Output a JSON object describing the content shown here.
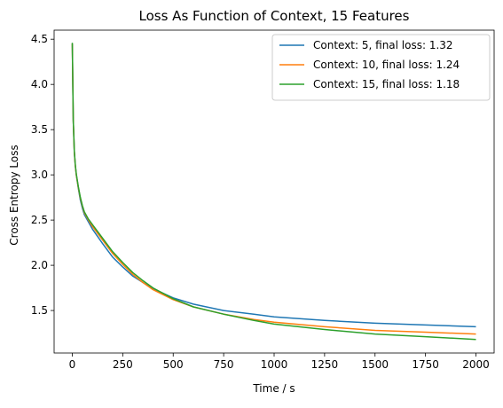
{
  "chart_data": {
    "type": "line",
    "title": "Loss As Function of Context, 15 Features",
    "xlabel": "Time / s",
    "ylabel": "Cross Entropy Loss",
    "xlim": [
      -90,
      2090
    ],
    "ylim": [
      1.03,
      4.6
    ],
    "xticks": [
      0,
      250,
      500,
      750,
      1000,
      1250,
      1500,
      1750,
      2000
    ],
    "yticks": [
      1.5,
      2.0,
      2.5,
      3.0,
      3.5,
      4.0,
      4.5
    ],
    "xtick_labels": [
      "0",
      "250",
      "500",
      "750",
      "1000",
      "1250",
      "1500",
      "1750",
      "2000"
    ],
    "ytick_labels": [
      "1.5",
      "2.0",
      "2.5",
      "3.0",
      "3.5",
      "4.0",
      "4.5"
    ],
    "grid": false,
    "legend_position": "top-right",
    "series": [
      {
        "name": "Context: 5, final loss: 1.32",
        "color": "#1f77b4",
        "x": [
          0,
          5,
          10,
          15,
          20,
          30,
          40,
          50,
          60,
          80,
          100,
          150,
          200,
          250,
          300,
          350,
          400,
          500,
          600,
          750,
          900,
          1000,
          1250,
          1500,
          1750,
          2000
        ],
        "y": [
          4.45,
          3.6,
          3.25,
          3.1,
          3.0,
          2.85,
          2.72,
          2.63,
          2.56,
          2.48,
          2.4,
          2.24,
          2.09,
          1.98,
          1.88,
          1.81,
          1.74,
          1.64,
          1.57,
          1.5,
          1.46,
          1.43,
          1.39,
          1.36,
          1.34,
          1.32
        ]
      },
      {
        "name": "Context: 10, final loss: 1.24",
        "color": "#ff7f0e",
        "x": [
          0,
          5,
          10,
          15,
          20,
          30,
          40,
          50,
          60,
          80,
          100,
          150,
          200,
          250,
          300,
          350,
          400,
          500,
          600,
          750,
          900,
          1000,
          1250,
          1500,
          1750,
          2000
        ],
        "y": [
          4.45,
          3.6,
          3.25,
          3.1,
          3.0,
          2.86,
          2.74,
          2.65,
          2.58,
          2.5,
          2.43,
          2.28,
          2.13,
          2.01,
          1.9,
          1.81,
          1.73,
          1.62,
          1.54,
          1.46,
          1.4,
          1.37,
          1.32,
          1.28,
          1.26,
          1.24
        ]
      },
      {
        "name": "Context: 15, final loss: 1.18",
        "color": "#2ca02c",
        "x": [
          0,
          5,
          10,
          15,
          20,
          30,
          40,
          50,
          60,
          80,
          100,
          150,
          200,
          250,
          300,
          350,
          400,
          500,
          600,
          750,
          900,
          1000,
          1250,
          1500,
          1750,
          2000
        ],
        "y": [
          4.46,
          3.6,
          3.26,
          3.11,
          3.01,
          2.87,
          2.75,
          2.66,
          2.59,
          2.51,
          2.45,
          2.3,
          2.15,
          2.03,
          1.92,
          1.83,
          1.75,
          1.63,
          1.54,
          1.46,
          1.39,
          1.35,
          1.29,
          1.24,
          1.21,
          1.18
        ]
      }
    ]
  }
}
